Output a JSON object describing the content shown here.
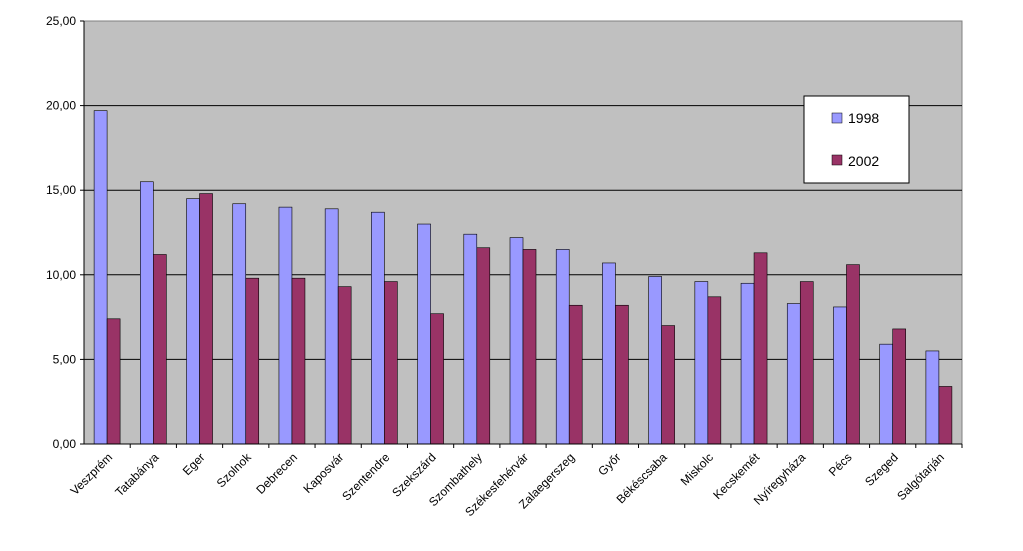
{
  "chart_data": {
    "type": "bar",
    "categories": [
      "Veszprém",
      "Tatabánya",
      "Eger",
      "Szolnok",
      "Debrecen",
      "Kaposvár",
      "Szentendre",
      "Szekszárd",
      "Szombathely",
      "Székesfehérvár",
      "Zalaegerszeg",
      "Győr",
      "Békéscsaba",
      "Miskolc",
      "Kecskemét",
      "Nyíregyháza",
      "Pécs",
      "Szeged",
      "Salgótarján"
    ],
    "series": [
      {
        "name": "1998",
        "color": "#9999ff",
        "values": [
          19.7,
          15.5,
          14.5,
          14.2,
          14.0,
          13.9,
          13.7,
          13.0,
          12.4,
          12.2,
          11.5,
          10.7,
          9.9,
          9.6,
          9.5,
          8.3,
          8.1,
          5.9,
          5.5
        ]
      },
      {
        "name": "2002",
        "color": "#993366",
        "values": [
          7.4,
          11.2,
          14.8,
          9.8,
          9.8,
          9.3,
          9.6,
          7.7,
          11.6,
          11.5,
          8.2,
          8.2,
          7.0,
          8.7,
          11.3,
          9.6,
          10.6,
          6.8,
          3.4
        ]
      }
    ],
    "y_ticks": [
      "0,00",
      "5,00",
      "10,00",
      "15,00",
      "20,00",
      "25,00"
    ],
    "ylim": [
      0,
      25
    ],
    "grid": true,
    "plot_background": "#c0c0c0",
    "legend": {
      "position": "top-right",
      "entries": [
        "1998",
        "2002"
      ]
    }
  }
}
